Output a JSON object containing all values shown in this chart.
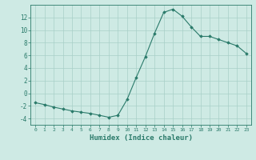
{
  "x": [
    0,
    1,
    2,
    3,
    4,
    5,
    6,
    7,
    8,
    9,
    10,
    11,
    12,
    13,
    14,
    15,
    16,
    17,
    18,
    19,
    20,
    21,
    22,
    23
  ],
  "y": [
    -1.5,
    -1.8,
    -2.2,
    -2.5,
    -2.8,
    -3.0,
    -3.2,
    -3.5,
    -3.8,
    -3.5,
    -1.0,
    2.5,
    5.8,
    9.5,
    12.8,
    13.3,
    12.2,
    10.5,
    9.0,
    9.0,
    8.5,
    8.0,
    7.5,
    6.3
  ],
  "line_color": "#2a7a6a",
  "marker": "D",
  "marker_size": 1.8,
  "bg_color": "#ceeae4",
  "grid_color": "#a8cfc8",
  "xlabel": "Humidex (Indice chaleur)",
  "xlim": [
    -0.5,
    23.5
  ],
  "ylim": [
    -5,
    14
  ],
  "yticks": [
    -4,
    -2,
    0,
    2,
    4,
    6,
    8,
    10,
    12
  ],
  "xticks": [
    0,
    1,
    2,
    3,
    4,
    5,
    6,
    7,
    8,
    9,
    10,
    11,
    12,
    13,
    14,
    15,
    16,
    17,
    18,
    19,
    20,
    21,
    22,
    23
  ]
}
